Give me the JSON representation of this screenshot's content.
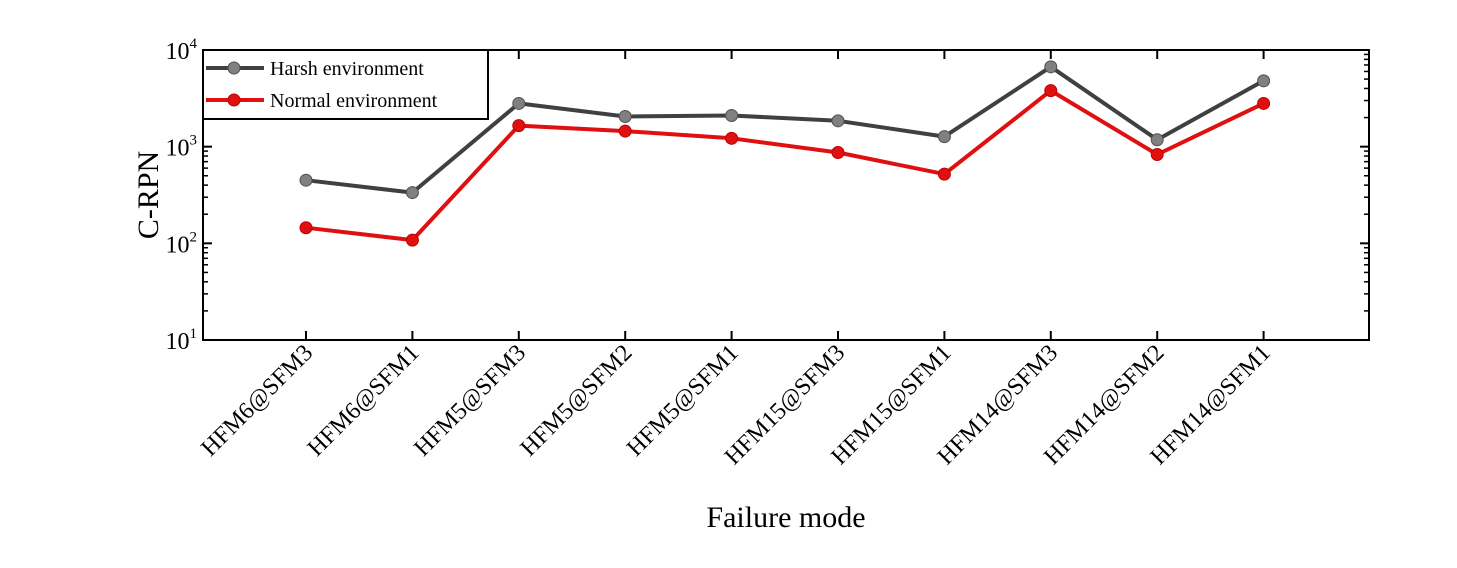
{
  "chart_data": {
    "type": "line",
    "xlabel": "Failure mode",
    "ylabel": "C-RPN",
    "yscale": "log",
    "ylim": [
      10,
      10000
    ],
    "grid": false,
    "legend_position": "top-left",
    "categories": [
      "HFM6@SFM3",
      "HFM6@SFM1",
      "HFM5@SFM3",
      "HFM5@SFM2",
      "HFM5@SFM1",
      "HFM15@SFM3",
      "HFM15@SFM1",
      "HFM14@SFM3",
      "HFM14@SFM2",
      "HFM14@SFM1"
    ],
    "series": [
      {
        "name": "Harsh environment",
        "color": "#404040",
        "marker_color": "#808080",
        "values": [
          450,
          335,
          2800,
          2050,
          2100,
          1850,
          1270,
          6700,
          1180,
          4800
        ]
      },
      {
        "name": "Normal environment",
        "color": "#e01010",
        "marker_color": "#e01010",
        "values": [
          145,
          108,
          1650,
          1450,
          1220,
          870,
          520,
          3800,
          830,
          2800
        ]
      }
    ],
    "y_ticks": [
      {
        "value": 10,
        "base": "10",
        "exp": "1"
      },
      {
        "value": 100,
        "base": "10",
        "exp": "2"
      },
      {
        "value": 1000,
        "base": "10",
        "exp": "3"
      },
      {
        "value": 10000,
        "base": "10",
        "exp": "4"
      }
    ]
  }
}
